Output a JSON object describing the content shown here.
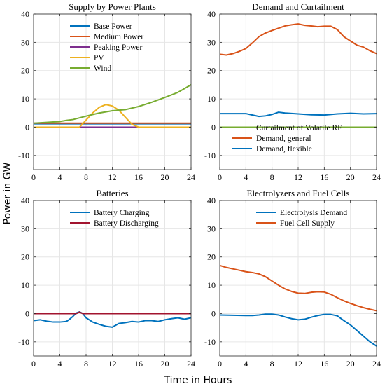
{
  "figure": {
    "shared_ylabel": "Power in GW",
    "shared_xlabel": "Time in Hours"
  },
  "chart_data": [
    {
      "type": "line",
      "title": "Supply by Power Plants",
      "xlim": [
        0,
        24
      ],
      "ylim": [
        -15,
        40
      ],
      "xticks": [
        0,
        4,
        8,
        12,
        16,
        20,
        24
      ],
      "yticks": [
        -10,
        0,
        10,
        20,
        30,
        40
      ],
      "grid": true,
      "legend_position": "top-center",
      "series": [
        {
          "name": "Base Power",
          "color": "#0072BD",
          "x": [
            0,
            24
          ],
          "y": [
            1.2,
            1.2
          ]
        },
        {
          "name": "Medium Power",
          "color": "#D95319",
          "x": [
            0,
            24
          ],
          "y": [
            1.4,
            1.4
          ]
        },
        {
          "name": "Peaking Power",
          "color": "#7E2F8E",
          "x": [
            0,
            24
          ],
          "y": [
            0,
            0
          ]
        },
        {
          "name": "PV",
          "color": "#EDB120",
          "x": [
            0,
            7,
            8,
            9,
            10,
            11,
            12,
            13,
            14,
            15,
            16,
            24
          ],
          "y": [
            0,
            0,
            2.5,
            5,
            7,
            8,
            7.5,
            6,
            3.5,
            1,
            0,
            0
          ]
        },
        {
          "name": "Wind",
          "color": "#77AC30",
          "x": [
            0,
            2,
            4,
            5,
            6,
            8,
            10,
            12,
            14,
            16,
            18,
            20,
            22,
            24
          ],
          "y": [
            1.4,
            1.7,
            2.0,
            2.4,
            2.7,
            3.9,
            5.0,
            5.8,
            6.2,
            7.3,
            8.8,
            10.5,
            12.3,
            15.0
          ]
        }
      ]
    },
    {
      "type": "line",
      "title": "Demand and Curtailment",
      "xlim": [
        0,
        24
      ],
      "ylim": [
        -15,
        40
      ],
      "xticks": [
        0,
        4,
        8,
        12,
        16,
        20,
        24
      ],
      "yticks": [
        -10,
        0,
        10,
        20,
        30,
        40
      ],
      "grid": true,
      "legend_position": "bottom-right",
      "series": [
        {
          "name": "Curtailment of Volatile RE",
          "color": "#77AC30",
          "x": [
            0,
            24
          ],
          "y": [
            0,
            0
          ]
        },
        {
          "name": "Demand, general",
          "color": "#D95319",
          "x": [
            0,
            1,
            2,
            3,
            4,
            5,
            6,
            7,
            8,
            9,
            10,
            11,
            12,
            13,
            14,
            15,
            16,
            17,
            18,
            19,
            20,
            21,
            22,
            23,
            24
          ],
          "y": [
            25.8,
            25.5,
            26.0,
            26.8,
            27.8,
            29.8,
            32.0,
            33.3,
            34.2,
            35.0,
            35.8,
            36.2,
            36.5,
            36.0,
            35.8,
            35.5,
            35.7,
            35.7,
            34.5,
            32.0,
            30.5,
            29.0,
            28.3,
            27.0,
            26.0
          ]
        },
        {
          "name": "Demand, flexible",
          "color": "#0072BD",
          "x": [
            0,
            2,
            4,
            5,
            6,
            7,
            8,
            9,
            10,
            12,
            14,
            16,
            18,
            20,
            22,
            24
          ],
          "y": [
            4.8,
            4.8,
            4.8,
            4.3,
            3.8,
            4.0,
            4.5,
            5.3,
            5.0,
            4.7,
            4.4,
            4.3,
            4.7,
            4.9,
            4.7,
            4.8
          ]
        }
      ]
    },
    {
      "type": "line",
      "title": "Batteries",
      "xlim": [
        0,
        24
      ],
      "ylim": [
        -15,
        40
      ],
      "xticks": [
        0,
        4,
        8,
        12,
        16,
        20,
        24
      ],
      "yticks": [
        -10,
        0,
        10,
        20,
        30,
        40
      ],
      "grid": true,
      "legend_position": "top-center",
      "series": [
        {
          "name": "Battery Charging",
          "color": "#0072BD",
          "x": [
            0,
            1,
            2,
            3,
            4,
            5,
            5.5,
            6,
            6.5,
            7,
            7.5,
            8,
            9,
            10,
            11,
            12,
            13,
            14,
            15,
            16,
            17,
            18,
            19,
            20,
            21,
            22,
            23,
            24
          ],
          "y": [
            -2.5,
            -2.2,
            -2.7,
            -3.0,
            -3.0,
            -2.8,
            -2.0,
            -1.0,
            0.2,
            0.6,
            0.0,
            -1.5,
            -3.0,
            -3.8,
            -4.5,
            -4.8,
            -3.5,
            -3.2,
            -2.8,
            -3.0,
            -2.5,
            -2.5,
            -2.8,
            -2.2,
            -1.8,
            -1.5,
            -2.0,
            -1.5
          ]
        },
        {
          "name": "Battery Discharging",
          "color": "#A2142F",
          "x": [
            0,
            6.5,
            7,
            7.5,
            24
          ],
          "y": [
            0,
            0,
            0.5,
            0,
            0
          ]
        }
      ]
    },
    {
      "type": "line",
      "title": "Electrolyzers and Fuel Cells",
      "xlim": [
        0,
        24
      ],
      "ylim": [
        -15,
        40
      ],
      "xticks": [
        0,
        4,
        8,
        12,
        16,
        20,
        24
      ],
      "yticks": [
        -10,
        0,
        10,
        20,
        30,
        40
      ],
      "grid": true,
      "legend_position": "top-center",
      "series": [
        {
          "name": "Electrolysis Demand",
          "color": "#0072BD",
          "x": [
            0,
            2,
            4,
            5,
            6,
            7,
            8,
            9,
            10,
            11,
            12,
            13,
            14,
            15,
            16,
            17,
            18,
            19,
            20,
            21,
            22,
            23,
            24
          ],
          "y": [
            -0.5,
            -0.6,
            -0.7,
            -0.7,
            -0.5,
            -0.2,
            -0.2,
            -0.5,
            -1.2,
            -1.8,
            -2.2,
            -2.0,
            -1.3,
            -0.7,
            -0.3,
            -0.3,
            -0.8,
            -2.5,
            -4.0,
            -6.0,
            -8.0,
            -10.0,
            -11.5
          ]
        },
        {
          "name": "Fuel Cell Supply",
          "color": "#D95319",
          "x": [
            0,
            1,
            2,
            3,
            4,
            5,
            6,
            7,
            8,
            9,
            10,
            11,
            12,
            13,
            14,
            15,
            16,
            17,
            18,
            19,
            20,
            21,
            22,
            23,
            24
          ],
          "y": [
            17.0,
            16.3,
            15.8,
            15.3,
            14.8,
            14.5,
            14.0,
            13.0,
            11.5,
            10.0,
            8.7,
            7.8,
            7.2,
            7.1,
            7.5,
            7.7,
            7.6,
            6.8,
            5.6,
            4.5,
            3.6,
            2.8,
            2.1,
            1.5,
            1.0
          ]
        }
      ]
    }
  ]
}
